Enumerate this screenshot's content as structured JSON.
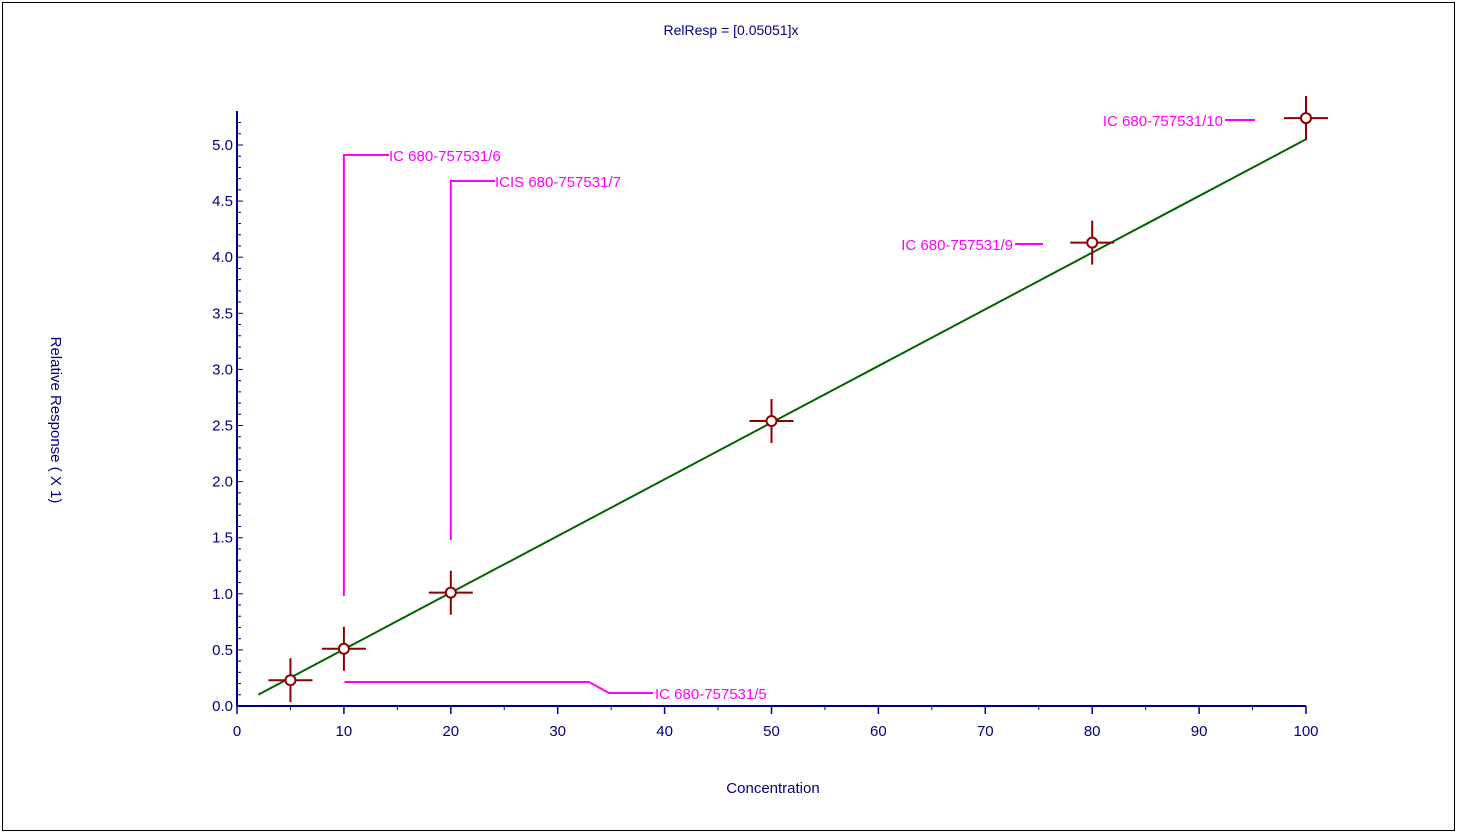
{
  "chart_data": {
    "type": "scatter",
    "title": "RelResp = [0.05051]x",
    "xlabel": "Concentration",
    "ylabel": "Relative Response  ( X 1)",
    "xlim": [
      0,
      100
    ],
    "ylim": [
      0,
      5.25
    ],
    "x_ticks": [
      "0",
      "10",
      "20",
      "30",
      "40",
      "50",
      "60",
      "70",
      "80",
      "90",
      "100"
    ],
    "y_ticks": [
      "0.0",
      "0.5",
      "1.0",
      "1.5",
      "2.0",
      "2.5",
      "3.0",
      "3.5",
      "4.0",
      "4.5",
      "5.0"
    ],
    "grid": false,
    "series": [
      {
        "points": [
          {
            "x": 5,
            "y": 0.23
          },
          {
            "x": 10,
            "y": 0.51
          },
          {
            "x": 20,
            "y": 1.01
          },
          {
            "x": 50,
            "y": 2.54
          },
          {
            "x": 80,
            "y": 4.13
          },
          {
            "x": 100,
            "y": 5.24
          }
        ]
      }
    ],
    "fit": {
      "slope": 0.05051,
      "x_start": 2,
      "x_end": 100
    },
    "annotations": [
      {
        "text": "IC 680-757531/5",
        "point_index": 0
      },
      {
        "text": "IC 680-757531/6",
        "point_index": 1
      },
      {
        "text": "ICIS 680-757531/7",
        "point_index": 2
      },
      {
        "text": "IC 680-757531/9",
        "point_index": 4
      },
      {
        "text": "IC 680-757531/10",
        "point_index": 5
      }
    ],
    "colors": {
      "axis": "#000080",
      "fit_line": "#006400",
      "marker": "#8b0000",
      "annotation": "#ff00ff"
    }
  }
}
